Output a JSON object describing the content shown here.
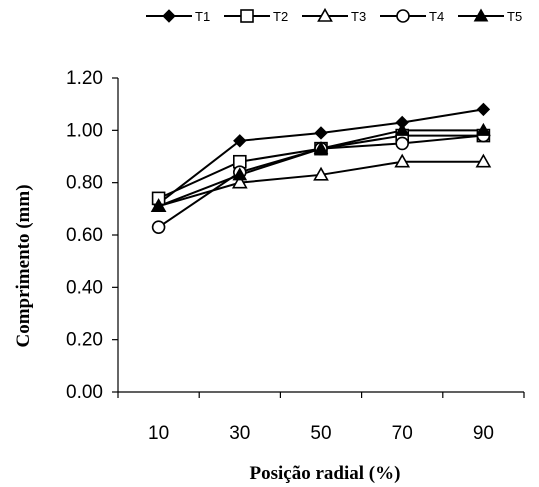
{
  "chart_data": {
    "type": "line",
    "title": "",
    "xlabel": "Posição radial (%)",
    "ylabel": "Comprimento (mm)",
    "categories": [
      "10",
      "30",
      "50",
      "70",
      "90"
    ],
    "ylim": [
      0,
      1.2
    ],
    "yticks": [
      "0.00",
      "0.20",
      "0.40",
      "0.60",
      "0.80",
      "1.00",
      "1.20"
    ],
    "grid": false,
    "legend_position": "top",
    "series": [
      {
        "name": "T1",
        "marker": "diamond-filled",
        "values": [
          0.72,
          0.96,
          0.99,
          1.03,
          1.08
        ]
      },
      {
        "name": "T2",
        "marker": "square-open",
        "values": [
          0.74,
          0.88,
          0.93,
          0.98,
          0.98
        ]
      },
      {
        "name": "T3",
        "marker": "triangle-open",
        "values": [
          0.71,
          0.8,
          0.83,
          0.88,
          0.88
        ]
      },
      {
        "name": "T4",
        "marker": "circle-open",
        "values": [
          0.63,
          0.84,
          0.93,
          0.95,
          0.98
        ]
      },
      {
        "name": "T5",
        "marker": "triangle-filled",
        "values": [
          0.71,
          0.83,
          0.93,
          1.0,
          1.0
        ]
      }
    ],
    "colors": {
      "line": "#000000",
      "marker_fill": "#000000",
      "marker_open_fill": "#ffffff"
    }
  }
}
